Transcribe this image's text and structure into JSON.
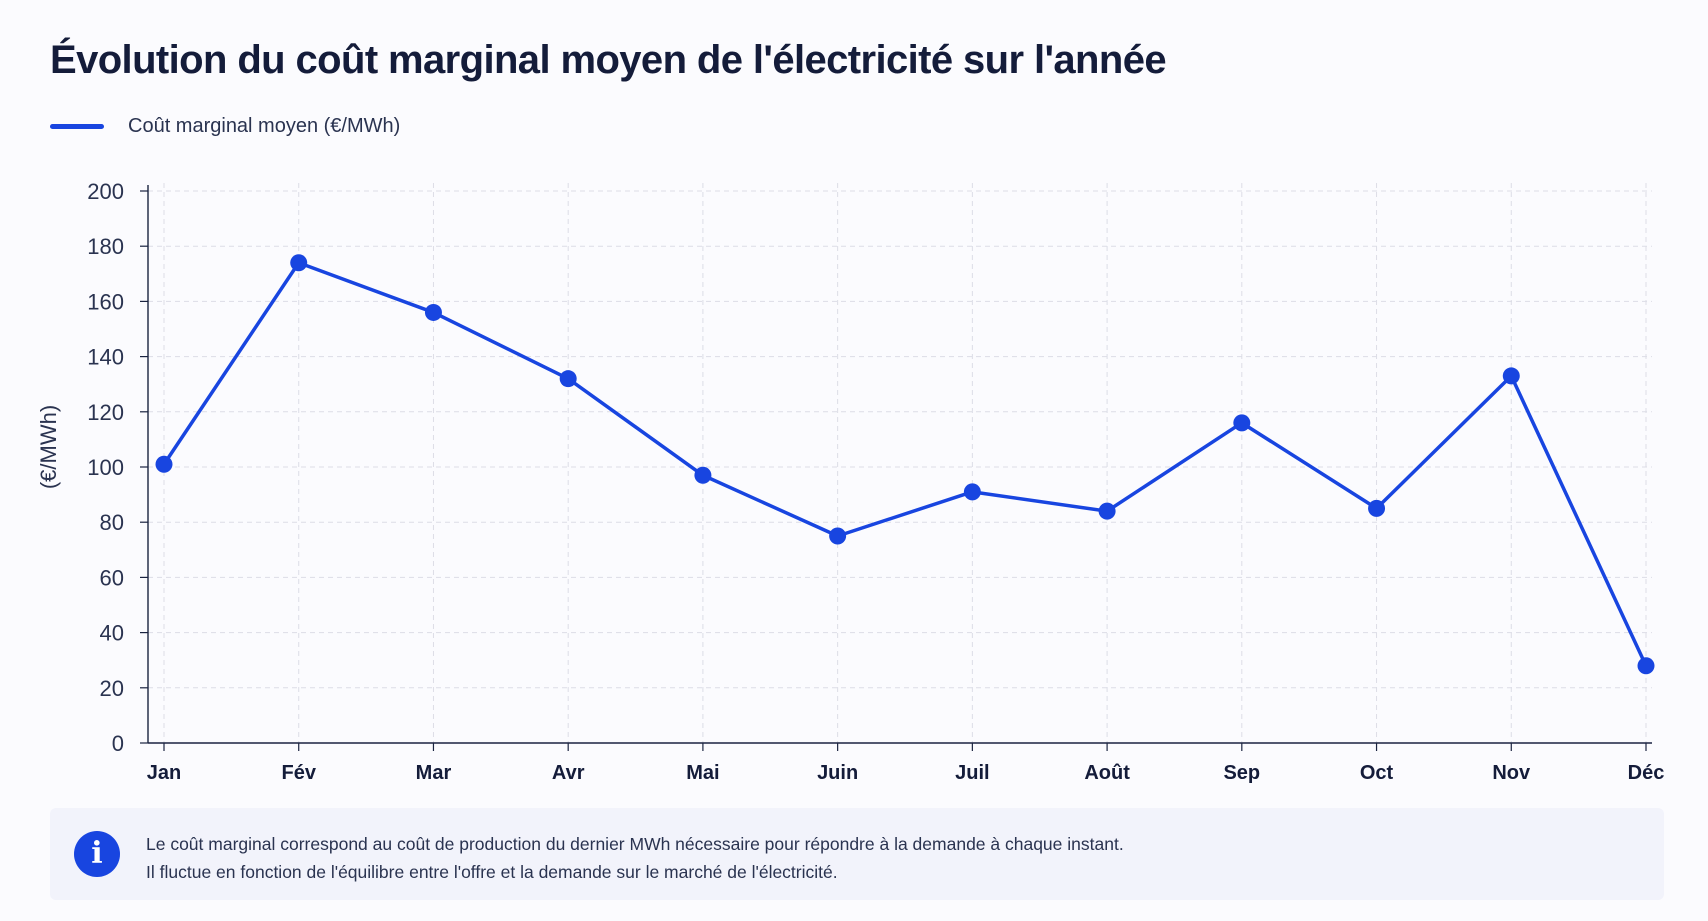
{
  "header": {
    "title": "Évolution du coût marginal moyen de l'électricité sur l'année"
  },
  "colors": {
    "series": "#1845e0",
    "axis": "#1a2340",
    "grid": "#dcdde6"
  },
  "chart_data": {
    "type": "line",
    "title": "Évolution du coût marginal moyen de l'électricité sur l'année",
    "xlabel": "",
    "ylabel": "(€/MWh)",
    "ylim": [
      0,
      200
    ],
    "yticks": [
      0,
      20,
      40,
      60,
      80,
      100,
      120,
      140,
      160,
      180,
      200
    ],
    "grid": true,
    "legend_position": "top-left",
    "categories": [
      "Jan",
      "Fév",
      "Mar",
      "Avr",
      "Mai",
      "Juin",
      "Juil",
      "Août",
      "Sep",
      "Oct",
      "Nov",
      "Déc"
    ],
    "series": [
      {
        "name": "Coût marginal moyen (€/MWh)",
        "values": [
          101,
          174,
          156,
          132,
          97,
          75,
          91,
          84,
          116,
          85,
          133,
          28
        ]
      }
    ]
  },
  "info": {
    "icon": "info-icon",
    "line1": "Le coût marginal correspond au coût de production du dernier MWh nécessaire pour répondre à la demande à chaque instant.",
    "line2": "Il fluctue en fonction de l'équilibre entre l'offre et la demande sur le marché de l'électricité."
  }
}
